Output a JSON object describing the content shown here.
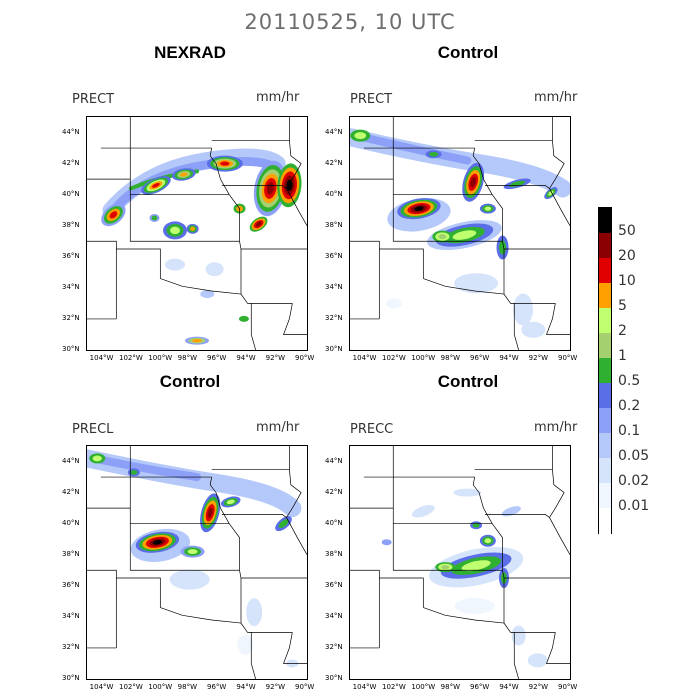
{
  "figure": {
    "suptitle": "20110525, 10 UTC"
  },
  "chart_data": [
    {
      "type": "heatmap",
      "title": "NEXRAD",
      "variable": "PRECT",
      "units": "mm/hr",
      "lat_ticks": [
        "30°N",
        "32°N",
        "34°N",
        "36°N",
        "38°N",
        "40°N",
        "42°N",
        "44°N"
      ],
      "lon_ticks": [
        "104°W",
        "102°W",
        "100°W",
        "98°W",
        "96°W",
        "94°W",
        "92°W",
        "90°W"
      ]
    },
    {
      "type": "heatmap",
      "title": "Control",
      "variable": "PRECT",
      "units": "mm/hr",
      "lat_ticks": [
        "30°N",
        "32°N",
        "34°N",
        "36°N",
        "38°N",
        "40°N",
        "42°N",
        "44°N"
      ],
      "lon_ticks": [
        "104°W",
        "102°W",
        "100°W",
        "98°W",
        "96°W",
        "94°W",
        "92°W",
        "90°W"
      ]
    },
    {
      "type": "heatmap",
      "title": "Control",
      "variable": "PRECL",
      "units": "mm/hr",
      "lat_ticks": [
        "30°N",
        "32°N",
        "34°N",
        "36°N",
        "38°N",
        "40°N",
        "42°N",
        "44°N"
      ],
      "lon_ticks": [
        "104°W",
        "102°W",
        "100°W",
        "98°W",
        "96°W",
        "94°W",
        "92°W",
        "90°W"
      ]
    },
    {
      "type": "heatmap",
      "title": "Control",
      "variable": "PRECC",
      "units": "mm/hr",
      "lat_ticks": [
        "30°N",
        "32°N",
        "34°N",
        "36°N",
        "38°N",
        "40°N",
        "42°N",
        "44°N"
      ],
      "lon_ticks": [
        "104°W",
        "102°W",
        "100°W",
        "98°W",
        "96°W",
        "94°W",
        "92°W",
        "90°W"
      ]
    }
  ],
  "colorbar": {
    "labels": [
      "50",
      "20",
      "10",
      "5",
      "2",
      "1",
      "0.5",
      "0.2",
      "0.1",
      "0.05",
      "0.02",
      "0.01"
    ],
    "colors": [
      "#000000",
      "#8b0000",
      "#e00000",
      "#ffa000",
      "#c0ff70",
      "#a5d070",
      "#30b030",
      "#5a6ee8",
      "#8ca0f8",
      "#b4c8fa",
      "#d6e4fb",
      "#f0f6fe",
      "#ffffff"
    ]
  }
}
